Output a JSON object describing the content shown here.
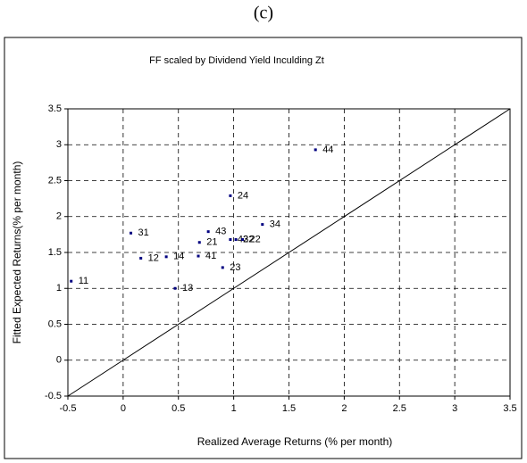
{
  "chart_data": {
    "type": "scatter",
    "panel_label": "(c)",
    "title": "FF  scaled by Dividend Yield  Inculding  Zt",
    "x_label": "Realized Average Returns (% per month)",
    "y_label": "Fitted Expected Returns(% per month)",
    "labels": [
      "11",
      "31",
      "12",
      "14",
      "13",
      "43",
      "21",
      "41",
      "23",
      "24",
      "34",
      "42",
      "32",
      "22",
      "44"
    ],
    "x": [
      -0.47,
      0.07,
      0.16,
      0.39,
      0.47,
      0.77,
      0.69,
      0.68,
      0.9,
      0.97,
      1.26,
      0.97,
      1.02,
      1.08,
      1.74
    ],
    "y": [
      1.1,
      1.77,
      1.42,
      1.44,
      1.0,
      1.79,
      1.64,
      1.45,
      1.29,
      2.29,
      1.89,
      1.68,
      1.68,
      1.68,
      2.93
    ],
    "color": "#000080",
    "xlim": [
      -0.5,
      3.5
    ],
    "xticks": [
      -0.5,
      0,
      0.5,
      1,
      1.5,
      2,
      2.5,
      3,
      3.5
    ],
    "ylim": [
      -0.5,
      3.5
    ],
    "yticks": [
      -0.5,
      0,
      0.5,
      1,
      1.5,
      2,
      2.5,
      3,
      3.5
    ],
    "grid": true
  }
}
